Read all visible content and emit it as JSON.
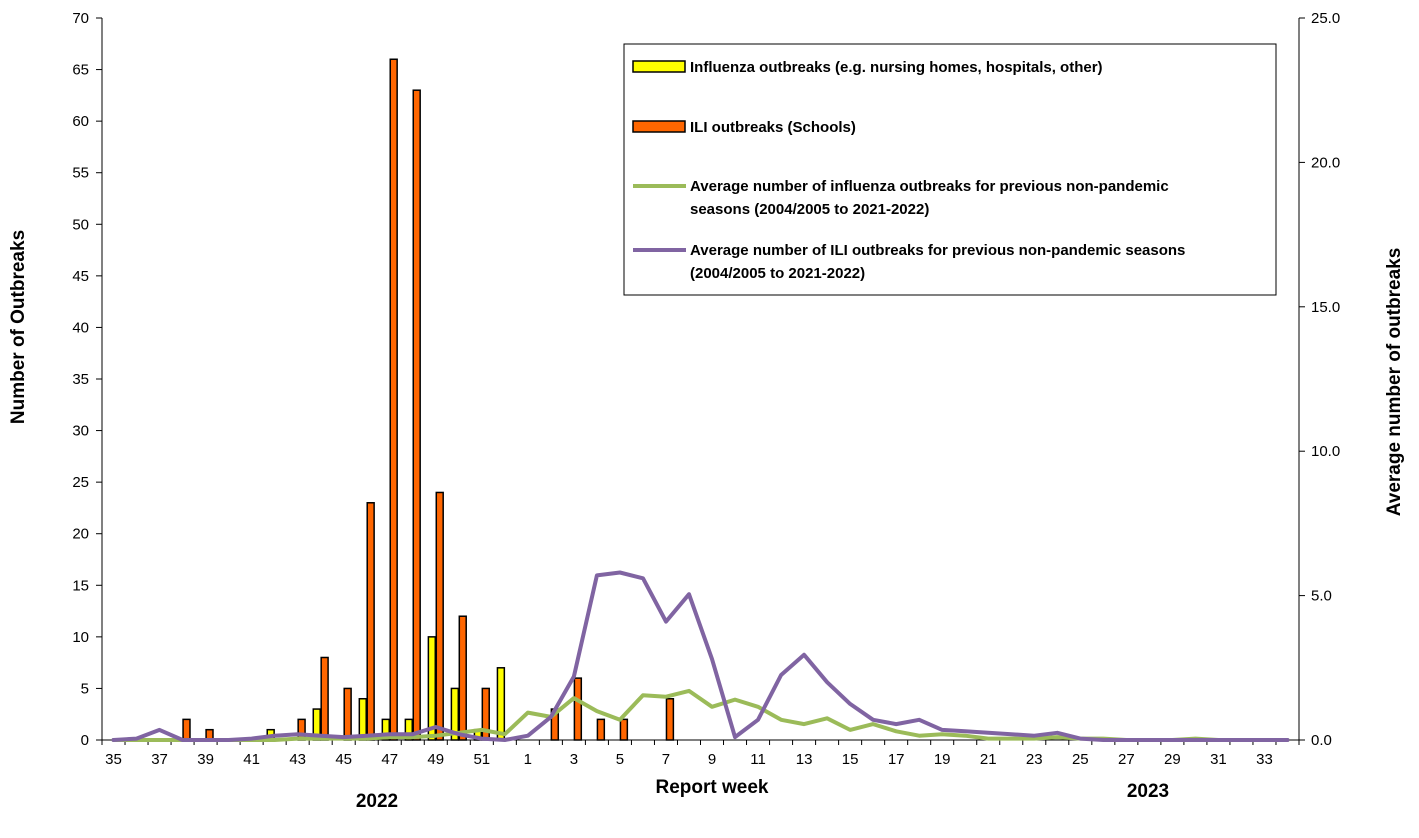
{
  "chart_data": {
    "type": "bar",
    "xlabel": "Report week",
    "ylabel_left": "Number of Outbreaks",
    "ylabel_right": "Average number of outbreaks",
    "ylim_left": [
      0,
      70
    ],
    "ylim_right": [
      0,
      25
    ],
    "left_ticks": [
      "0",
      "5",
      "10",
      "15",
      "20",
      "25",
      "30",
      "35",
      "40",
      "45",
      "50",
      "55",
      "60",
      "65",
      "70"
    ],
    "right_ticks": [
      "0.0",
      "5.0",
      "10.0",
      "15.0",
      "20.0",
      "25.0"
    ],
    "year_labels": [
      "2022",
      "2023"
    ],
    "legend_position": "top-right",
    "weeks": [
      "35",
      "36",
      "37",
      "38",
      "39",
      "40",
      "41",
      "42",
      "43",
      "44",
      "45",
      "46",
      "47",
      "48",
      "49",
      "50",
      "51",
      "52",
      "1",
      "2",
      "3",
      "4",
      "5",
      "6",
      "7",
      "8",
      "9",
      "10",
      "11",
      "12",
      "13",
      "14",
      "15",
      "16",
      "17",
      "18",
      "19",
      "20",
      "21",
      "22",
      "23",
      "24",
      "25",
      "26",
      "27",
      "28",
      "29",
      "30",
      "31",
      "32",
      "33",
      "34"
    ],
    "shown_tick_labels": [
      "35",
      "37",
      "39",
      "41",
      "43",
      "45",
      "47",
      "49",
      "51",
      "1",
      "3",
      "5",
      "7",
      "9",
      "11",
      "13",
      "15",
      "17",
      "19",
      "21",
      "23",
      "25",
      "27",
      "29",
      "31",
      "33"
    ],
    "series": [
      {
        "name": "Influenza outbreaks (e.g. nursing homes, hospitals, other)",
        "kind": "bar",
        "axis": "left",
        "color": "#ffff00",
        "values": [
          0,
          0,
          0,
          0,
          0,
          0,
          0,
          1,
          0,
          3,
          0,
          4,
          2,
          2,
          10,
          5,
          1,
          7,
          0,
          0,
          0,
          0,
          0,
          0,
          0,
          0,
          0,
          0,
          0,
          0,
          0,
          0,
          0,
          0,
          0,
          0,
          0,
          0,
          0,
          0,
          0,
          0,
          0,
          0,
          0,
          0,
          0,
          0,
          0,
          0,
          0,
          0
        ]
      },
      {
        "name": "ILI outbreaks (Schools)",
        "kind": "bar",
        "axis": "left",
        "color": "#ff6600",
        "values": [
          0,
          0,
          0,
          2,
          1,
          0,
          0,
          0,
          2,
          8,
          5,
          23,
          66,
          63,
          24,
          12,
          5,
          0,
          0,
          3,
          6,
          2,
          2,
          0,
          4,
          0,
          0,
          0,
          0,
          0,
          0,
          0,
          0,
          0,
          0,
          0,
          0,
          0,
          0,
          0,
          0,
          0,
          0,
          0,
          0,
          0,
          0,
          0,
          0,
          0,
          0,
          0
        ]
      },
      {
        "name": "Average number of influenza outbreaks for previous non-pandemic seasons (2004/2005 to 2021-2022)",
        "kind": "line",
        "axis": "right",
        "color": "#9bbb59",
        "values": [
          0,
          0,
          0,
          0,
          0,
          0,
          0,
          0,
          0.05,
          0.05,
          0.05,
          0.05,
          0.1,
          0.1,
          0.15,
          0.25,
          0.35,
          0.2,
          0.95,
          0.8,
          1.45,
          1.0,
          0.7,
          1.55,
          1.5,
          1.7,
          1.15,
          1.4,
          1.15,
          0.7,
          0.55,
          0.75,
          0.35,
          0.55,
          0.3,
          0.15,
          0.2,
          0.15,
          0.05,
          0.05,
          0.05,
          0.1,
          0.05,
          0.05,
          0.0,
          0.0,
          0.0,
          0.05,
          0.0,
          0.0,
          0.0,
          0.0
        ]
      },
      {
        "name": "Average number of ILI outbreaks for previous non-pandemic seasons (2004/2005 to 2021-2022)",
        "kind": "line",
        "axis": "right",
        "color": "#8064a2",
        "values": [
          0,
          0.05,
          0.35,
          0,
          0,
          0,
          0.05,
          0.15,
          0.2,
          0.15,
          0.1,
          0.15,
          0.2,
          0.2,
          0.45,
          0.2,
          0.05,
          0,
          0.15,
          0.8,
          2.2,
          5.7,
          5.8,
          5.6,
          4.1,
          5.05,
          2.8,
          0.1,
          0.7,
          2.25,
          2.95,
          2.0,
          1.25,
          0.7,
          0.55,
          0.7,
          0.35,
          0.3,
          0.25,
          0.2,
          0.15,
          0.25,
          0.05,
          0.0,
          0.0,
          0.0,
          0.0,
          0.0,
          0.0,
          0.0,
          0.0,
          0.0
        ]
      }
    ]
  }
}
